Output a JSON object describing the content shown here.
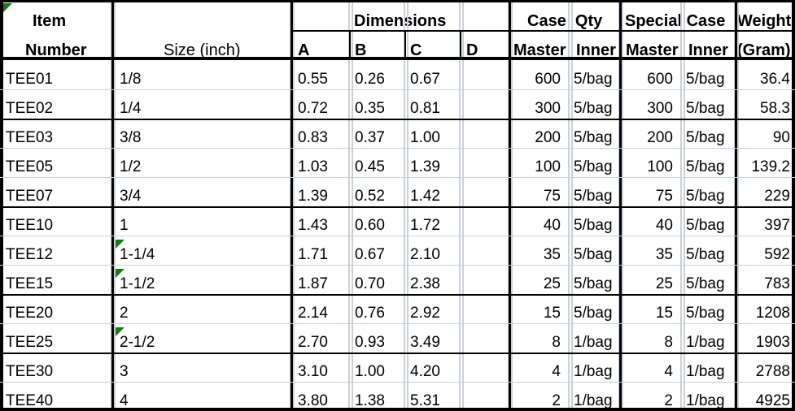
{
  "header": {
    "item_line1": "Item",
    "item_line2": "Number",
    "size": "Size (inch)",
    "dimensions": "Dimensions",
    "dim_a": "A",
    "dim_b": "B",
    "dim_c": "C",
    "dim_d": "D",
    "case_qty": "Case  Qty",
    "special_case": "Special Case",
    "weight_line1": "Weight",
    "weight_line2": "(Gram)",
    "master": "Master",
    "inner": "Inner",
    "special_master": "Master",
    "special_inner": "Inner"
  },
  "rows": [
    {
      "item": "TEE01",
      "size": "1/8",
      "a": "0.55",
      "b": "0.26",
      "c": "0.67",
      "d": "",
      "master": "600",
      "inner": "5/bag",
      "s_master": "600",
      "s_inner": "5/bag",
      "weight": "36.4"
    },
    {
      "item": "TEE02",
      "size": "1/4",
      "a": "0.72",
      "b": "0.35",
      "c": "0.81",
      "d": "",
      "master": "300",
      "inner": "5/bag",
      "s_master": "300",
      "s_inner": "5/bag",
      "weight": "58.3"
    },
    {
      "item": "TEE03",
      "size": "3/8",
      "a": "0.83",
      "b": "0.37",
      "c": "1.00",
      "d": "",
      "master": "200",
      "inner": "5/bag",
      "s_master": "200",
      "s_inner": "5/bag",
      "weight": "90"
    },
    {
      "item": "TEE05",
      "size": "1/2",
      "a": "1.03",
      "b": "0.45",
      "c": "1.39",
      "d": "",
      "master": "100",
      "inner": "5/bag",
      "s_master": "100",
      "s_inner": "5/bag",
      "weight": "139.2"
    },
    {
      "item": "TEE07",
      "size": "3/4",
      "a": "1.39",
      "b": "0.52",
      "c": "1.42",
      "d": "",
      "master": "75",
      "inner": "5/bag",
      "s_master": "75",
      "s_inner": "5/bag",
      "weight": "229"
    },
    {
      "item": "TEE10",
      "size": "1",
      "a": "1.43",
      "b": "0.60",
      "c": "1.72",
      "d": "",
      "master": "40",
      "inner": "5/bag",
      "s_master": "40",
      "s_inner": "5/bag",
      "weight": "397"
    },
    {
      "item": "TEE12",
      "size": "1-1/4",
      "a": "1.71",
      "b": "0.67",
      "c": "2.10",
      "d": "",
      "master": "35",
      "inner": "5/bag",
      "s_master": "35",
      "s_inner": "5/bag",
      "weight": "592"
    },
    {
      "item": "TEE15",
      "size": "1-1/2",
      "a": "1.87",
      "b": "0.70",
      "c": "2.38",
      "d": "",
      "master": "25",
      "inner": "5/bag",
      "s_master": "25",
      "s_inner": "5/bag",
      "weight": "783"
    },
    {
      "item": "TEE20",
      "size": "2",
      "a": "2.14",
      "b": "0.76",
      "c": "2.92",
      "d": "",
      "master": "15",
      "inner": "5/bag",
      "s_master": "15",
      "s_inner": "5/bag",
      "weight": "1208"
    },
    {
      "item": "TEE25",
      "size": "2-1/2",
      "a": "2.70",
      "b": "0.93",
      "c": "3.49",
      "d": "",
      "master": "8",
      "inner": "1/bag",
      "s_master": "8",
      "s_inner": "1/bag",
      "weight": "1903"
    },
    {
      "item": "TEE30",
      "size": "3",
      "a": "3.10",
      "b": "1.00",
      "c": "4.20",
      "d": "",
      "master": "4",
      "inner": "1/bag",
      "s_master": "4",
      "s_inner": "1/bag",
      "weight": "2788"
    },
    {
      "item": "TEE40",
      "size": "4",
      "a": "3.80",
      "b": "1.38",
      "c": "5.31",
      "d": "",
      "master": "2",
      "inner": "1/bag",
      "s_master": "2",
      "s_inner": "1/bag",
      "weight": "4925"
    }
  ],
  "comment_markers": [
    "TEE12",
    "TEE15",
    "TEE25"
  ],
  "colors": {
    "gridline": "#c9d0d8",
    "border": "#000000",
    "comment_marker": "#1a7a1a"
  }
}
